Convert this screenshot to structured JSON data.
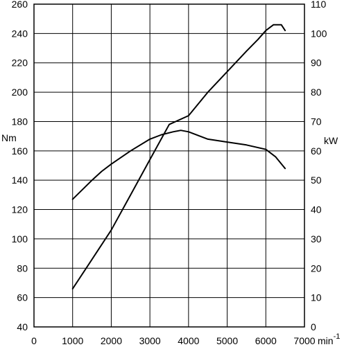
{
  "chart_data": {
    "type": "line",
    "title": "",
    "x_axis": {
      "label": "min",
      "label_superscript": "-1",
      "range": [
        0,
        7000
      ],
      "ticks": [
        0,
        1000,
        2000,
        3000,
        4000,
        5000,
        6000,
        7000
      ]
    },
    "y_axis_left": {
      "label": "Nm",
      "range": [
        40,
        260
      ],
      "ticks": [
        40,
        60,
        80,
        100,
        120,
        140,
        160,
        180,
        200,
        220,
        240,
        260
      ]
    },
    "y_axis_right": {
      "label": "kW",
      "range": [
        0,
        110
      ],
      "ticks": [
        0,
        10,
        20,
        30,
        40,
        50,
        60,
        70,
        80,
        90,
        100,
        110
      ]
    },
    "grid": true,
    "series": [
      {
        "axis": "left",
        "x": [
          1000,
          1500,
          1750,
          2000,
          2500,
          3000,
          3300,
          3600,
          3800,
          4000,
          4500,
          5000,
          5500,
          6000,
          6250,
          6500
        ],
        "y": [
          127,
          140,
          146,
          151,
          160,
          168,
          171,
          173,
          174,
          173,
          168,
          166,
          164,
          161,
          156,
          148
        ]
      },
      {
        "axis": "right",
        "x": [
          1000,
          1500,
          2000,
          2500,
          3000,
          3500,
          4000,
          4500,
          5000,
          5500,
          5800,
          6000,
          6200,
          6400,
          6500
        ],
        "y": [
          13,
          23,
          33,
          45,
          57,
          69,
          72,
          80,
          87,
          94,
          98,
          101,
          103,
          103,
          101
        ]
      }
    ]
  }
}
